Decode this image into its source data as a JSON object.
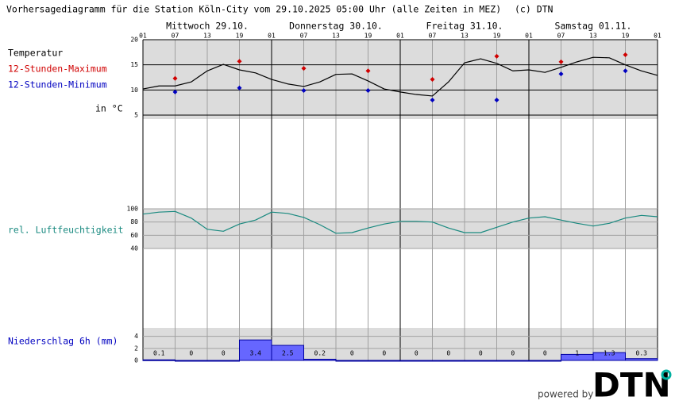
{
  "title": "Vorhersagediagramm für die Station Köln-City vom 29.10.2025 05:00 Uhr (alle Zeiten in MEZ)",
  "copyright": "(c) DTN",
  "footer": {
    "text": "powered by",
    "logo": "DTN"
  },
  "chart_data": [
    {
      "type": "line",
      "label": "Temperatur",
      "unit_label": "in °C",
      "days": [
        "Mittwoch 29.10.",
        "Donnerstag 30.10.",
        "Freitag 31.10.",
        "Samstag 01.11."
      ],
      "categories": [
        "01",
        null,
        "07",
        null,
        "13",
        null,
        "19",
        null,
        "01",
        null,
        "07",
        null,
        "13",
        null,
        "19",
        null,
        "01",
        null,
        "07",
        null,
        "13",
        null,
        "19",
        null,
        "01",
        null,
        "07",
        null,
        "13",
        null,
        "19",
        null,
        "01"
      ],
      "ylim": [
        5,
        20
      ],
      "yticks": [
        5,
        10,
        15,
        20
      ],
      "grid": true,
      "grid_color": "#000000",
      "series": [
        {
          "name": "Temperatur",
          "color": "#000000",
          "values": [
            10.2,
            10.8,
            10.8,
            11.6,
            13.8,
            15.1,
            14.0,
            13.4,
            12.1,
            11.2,
            10.7,
            11.6,
            13.1,
            13.2,
            11.8,
            10.2,
            9.6,
            9.1,
            8.8,
            11.6,
            15.4,
            16.2,
            15.3,
            13.8,
            14.0,
            13.5,
            14.5,
            15.6,
            16.5,
            16.4,
            15.0,
            13.8,
            12.9
          ]
        },
        {
          "name": "12-Stunden-Maximum",
          "type": "scatter",
          "color": "#d00000",
          "values": [
            null,
            null,
            12.3,
            null,
            null,
            null,
            15.7,
            null,
            null,
            null,
            14.3,
            null,
            null,
            null,
            13.8,
            null,
            null,
            null,
            12.1,
            null,
            null,
            null,
            16.7,
            null,
            null,
            null,
            15.6,
            null,
            null,
            null,
            17.0,
            null,
            null
          ]
        },
        {
          "name": "12-Stunden-Minimum",
          "type": "scatter",
          "color": "#0000c0",
          "values": [
            null,
            null,
            9.6,
            null,
            null,
            null,
            10.4,
            null,
            null,
            null,
            9.9,
            null,
            null,
            null,
            9.9,
            null,
            null,
            null,
            8.0,
            null,
            null,
            null,
            8.0,
            null,
            null,
            null,
            13.2,
            null,
            null,
            null,
            13.8,
            null,
            null
          ]
        }
      ]
    },
    {
      "type": "line",
      "label": "rel. Luftfeuchtigkeit",
      "ylim": [
        40,
        100
      ],
      "yticks": [
        40,
        60,
        80,
        100
      ],
      "grid": true,
      "grid_color": "#a0a0a0",
      "series": [
        {
          "name": "rel. Luftfeuchtigkeit",
          "color": "#1a8a80",
          "values": [
            92,
            95,
            96,
            86,
            69,
            66,
            77,
            83,
            95,
            93,
            87,
            76,
            63,
            64,
            71,
            77,
            81,
            81,
            80,
            71,
            64,
            64,
            72,
            80,
            86,
            88,
            83,
            78,
            74,
            78,
            86,
            90,
            88
          ]
        }
      ]
    },
    {
      "type": "bar",
      "label": "Niederschlag 6h (mm)",
      "ylim": [
        0,
        5.4
      ],
      "yticks": [
        0,
        2,
        4
      ],
      "grid": true,
      "grid_color": "#a0a0a0",
      "color": "#6666ff",
      "values": [
        0.1,
        0,
        0,
        3.4,
        2.5,
        0.2,
        0,
        0,
        0,
        0,
        0,
        0,
        0,
        1,
        1.3,
        0.3
      ]
    }
  ]
}
